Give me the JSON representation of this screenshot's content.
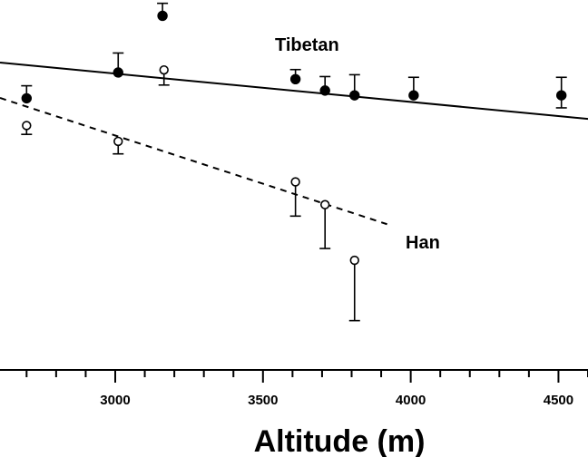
{
  "chart_data": {
    "type": "scatter",
    "xlabel": "Altitude (m)",
    "ylabel": "",
    "xlim": [
      2610,
      4600
    ],
    "ylim": [
      0,
      100
    ],
    "x_ticks": [
      3000,
      3500,
      4000,
      4500
    ],
    "x_tick_labels": [
      "3000",
      "3500",
      "4000",
      "4500"
    ],
    "grid": false,
    "series": [
      {
        "name": "Tibetan",
        "marker": "filled-circle",
        "points": [
          {
            "x": 2700,
            "y": 73.3,
            "err_up": 3.4,
            "err_down": 0
          },
          {
            "x": 3010,
            "y": 80.3,
            "err_up": 5.3,
            "err_down": 0
          },
          {
            "x": 3160,
            "y": 95.7,
            "err_up": 3.4,
            "err_down": 0
          },
          {
            "x": 3610,
            "y": 78.5,
            "err_up": 2.6,
            "err_down": 0
          },
          {
            "x": 3710,
            "y": 75.4,
            "err_up": 3.8,
            "err_down": 0
          },
          {
            "x": 3810,
            "y": 74.1,
            "err_up": 5.6,
            "err_down": 0
          },
          {
            "x": 4010,
            "y": 74.1,
            "err_up": 4.9,
            "err_down": 0
          },
          {
            "x": 4510,
            "y": 74.1,
            "err_up": 4.9,
            "err_down": 3.4
          }
        ]
      },
      {
        "name": "Tibetan",
        "marker": "open-circle",
        "points": [
          {
            "x": 3165,
            "y": 81.0,
            "err_up": 0,
            "err_down": 4.1
          }
        ]
      },
      {
        "name": "Han",
        "marker": "open-circle",
        "points": [
          {
            "x": 2700,
            "y": 65.9,
            "err_up": 0,
            "err_down": 2.4
          },
          {
            "x": 3010,
            "y": 61.6,
            "err_up": 0,
            "err_down": 3.4
          },
          {
            "x": 3610,
            "y": 50.6,
            "err_up": 0,
            "err_down": 9.3
          },
          {
            "x": 3710,
            "y": 44.4,
            "err_up": 0,
            "err_down": 11.9
          },
          {
            "x": 3810,
            "y": 29.3,
            "err_up": 0,
            "err_down": 16.4
          }
        ]
      }
    ],
    "lines": [
      {
        "name": "Tibetan",
        "style": "solid",
        "x": [
          2610,
          4600
        ],
        "y": [
          83.0,
          67.7
        ]
      },
      {
        "name": "Han",
        "style": "dashed",
        "x": [
          2610,
          3920
        ],
        "y": [
          73.4,
          39.1
        ]
      }
    ],
    "annotations": [
      {
        "text": "Tibetan",
        "near_series": "Tibetan"
      },
      {
        "text": "Han",
        "near_series": "Han"
      }
    ]
  }
}
